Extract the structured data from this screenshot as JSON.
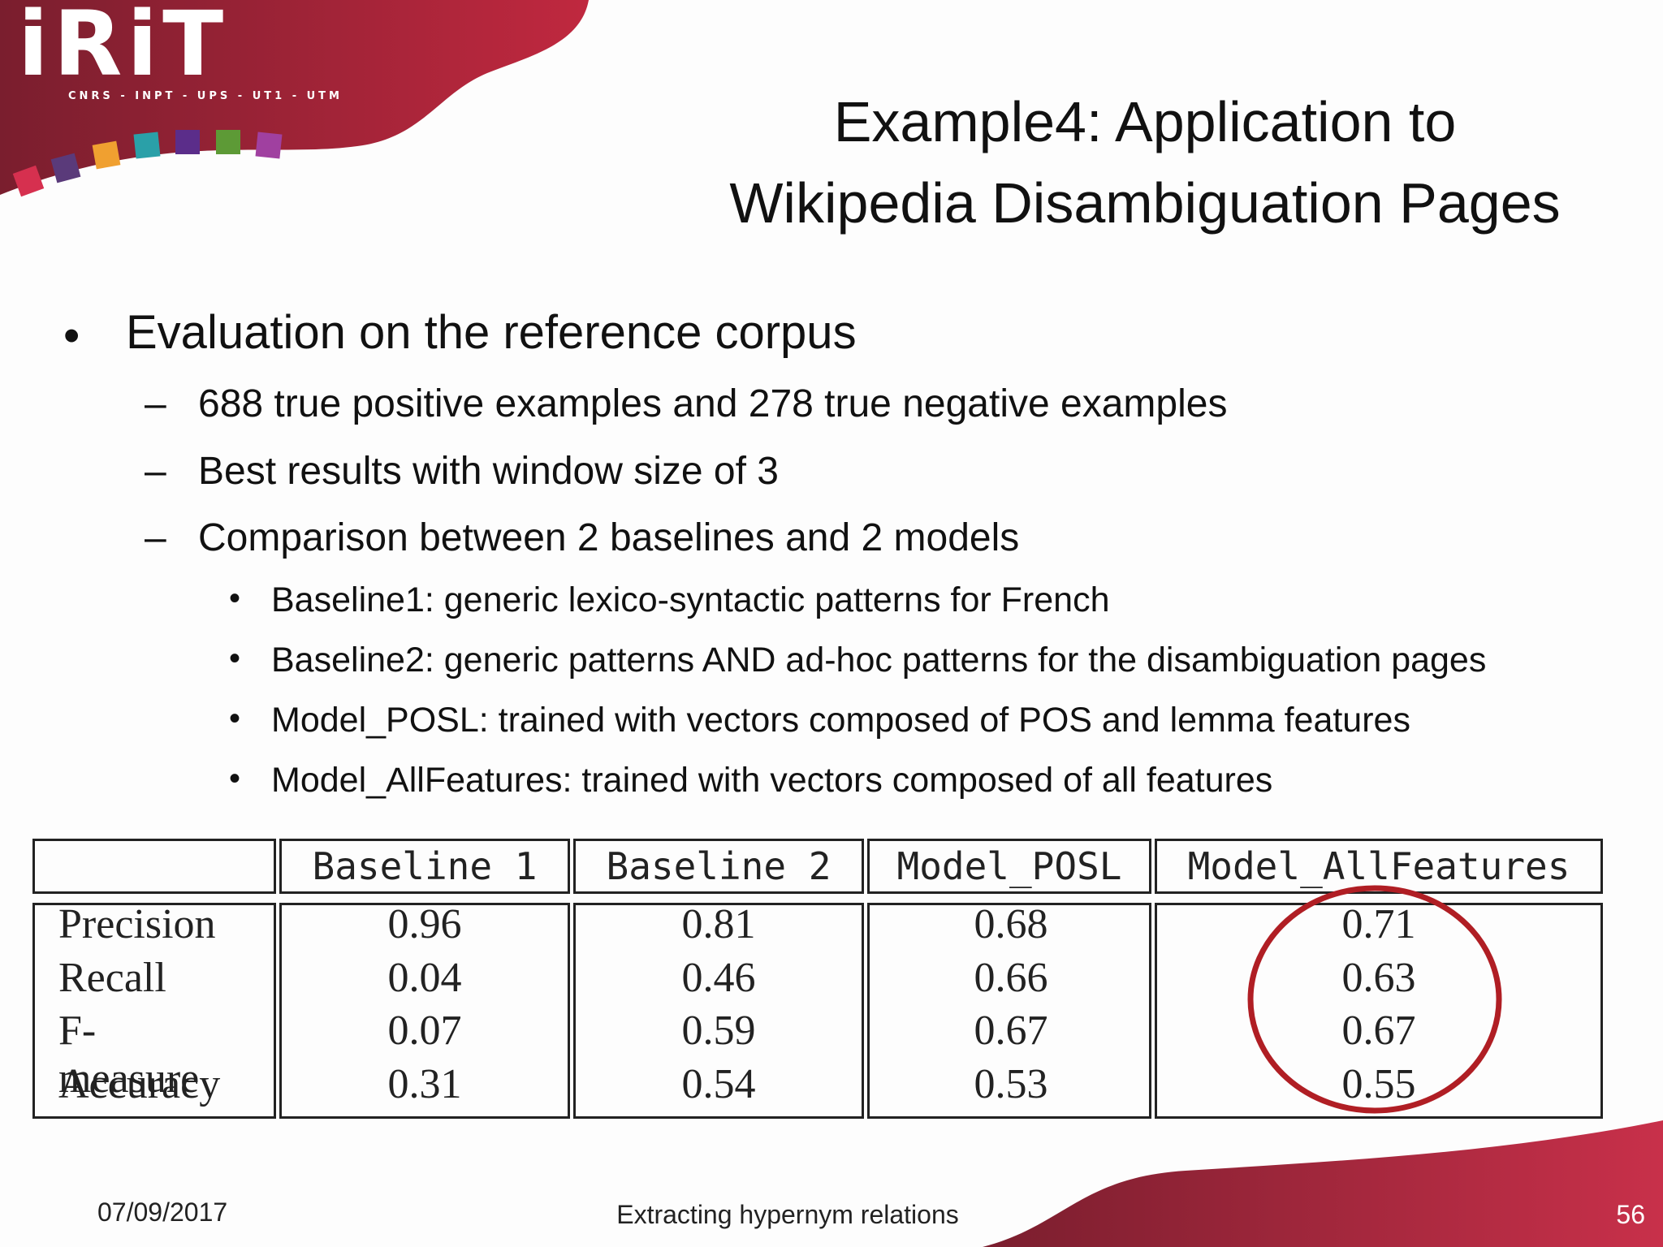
{
  "logo": {
    "wordmark": "iRiT",
    "tagline": "CNRS - INPT - UPS - UT1 - UTM",
    "colors": [
      "#d6304f",
      "#5a3a7a",
      "#f0a030",
      "#2aa0a8",
      "#5b2d8a",
      "#5d9a36",
      "#a040a0"
    ],
    "brand_color": "#b8283f"
  },
  "title": {
    "line1": "Example4: Application to",
    "line2": "Wikipedia Disambiguation Pages"
  },
  "bullets": {
    "level1": "Evaluation on the reference corpus",
    "level2": [
      "688 true positive examples and 278 true negative examples",
      "Best results with window size of 3",
      "Comparison between 2 baselines and 2 models"
    ],
    "level3": [
      "Baseline1: generic lexico-syntactic patterns for French",
      "Baseline2: generic patterns AND ad-hoc patterns for the disambiguation pages",
      "Model_POSL: trained with vectors composed of POS and lemma features",
      "Model_AllFeatures: trained with vectors composed of all features"
    ]
  },
  "table": {
    "columns": [
      "Baseline 1",
      "Baseline 2",
      "Model_POSL",
      "Model_AllFeatures"
    ],
    "rows": [
      {
        "label": "Precision",
        "values": [
          "0.96",
          "0.81",
          "0.68",
          "0.71"
        ]
      },
      {
        "label": "Recall",
        "values": [
          "0.04",
          "0.46",
          "0.66",
          "0.63"
        ]
      },
      {
        "label": "F-measure",
        "values": [
          "0.07",
          "0.59",
          "0.67",
          "0.67"
        ]
      },
      {
        "label": "Accuracy",
        "values": [
          "0.31",
          "0.54",
          "0.53",
          "0.55"
        ]
      }
    ],
    "highlight_color": "#b01e24"
  },
  "footer": {
    "date": "07/09/2017",
    "center": "Extracting hypernym relations",
    "page": "56"
  }
}
